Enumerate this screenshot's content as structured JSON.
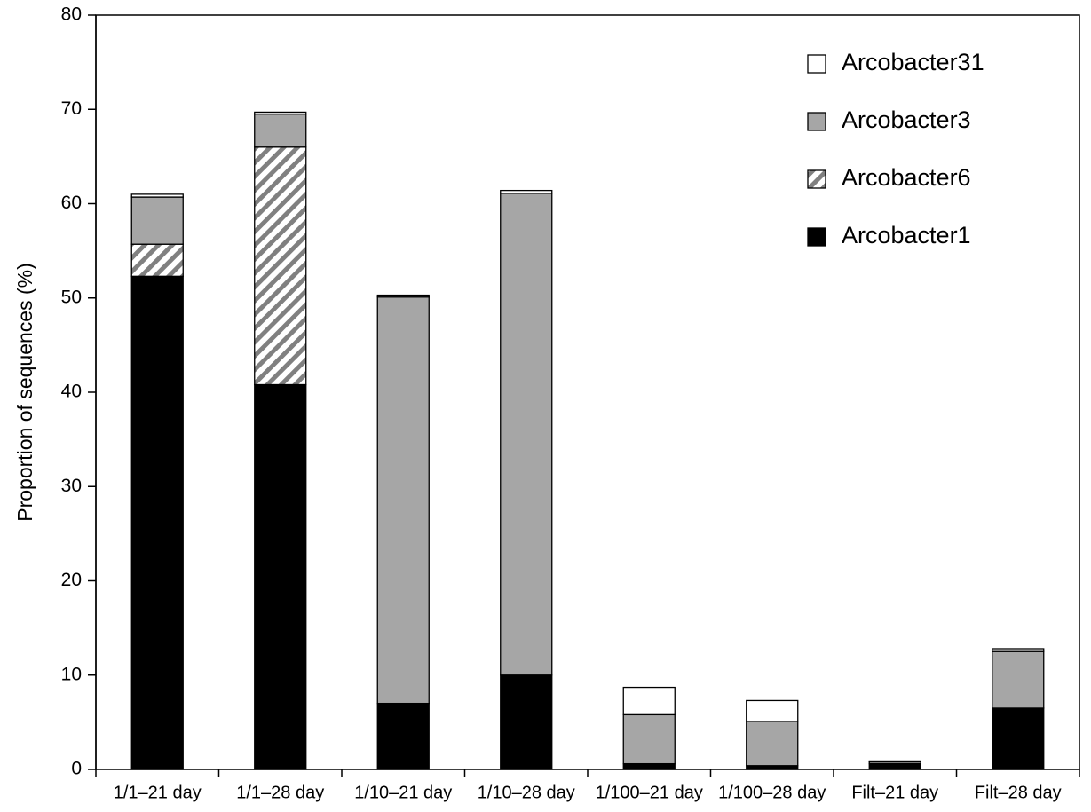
{
  "chart_data": {
    "type": "stacked-bar",
    "y_label": "Proportion of sequences (%)",
    "categories": [
      "1/1–21 day",
      "1/1–28 day",
      "1/10–21 day",
      "1/10–28 day",
      "1/100–21 day",
      "1/100–28 day",
      "Filt–21 day",
      "Filt–28 day"
    ],
    "series": [
      {
        "name": "Arcobacter1",
        "color": "#000000",
        "values": [
          52.3,
          40.8,
          7.0,
          10.0,
          0.6,
          0.4,
          0.6,
          6.5
        ]
      },
      {
        "name": "Arcobacter6",
        "color": "#808080",
        "pattern": "diagonal-hatch",
        "values": [
          3.4,
          25.2,
          0,
          0,
          0,
          0,
          0,
          0
        ]
      },
      {
        "name": "Arcobacter3",
        "color": "#a6a6a6",
        "values": [
          5.0,
          3.5,
          43.1,
          51.1,
          5.2,
          4.7,
          0.2,
          6.0
        ]
      },
      {
        "name": "Arcobacter31",
        "color": "#ffffff",
        "values": [
          0.3,
          0.2,
          0.2,
          0.3,
          2.9,
          2.2,
          0.1,
          0.3
        ]
      }
    ],
    "ylim": [
      0,
      80
    ],
    "yticks": [
      0,
      10,
      20,
      30,
      40,
      50,
      60,
      70,
      80
    ],
    "legend": "top-right"
  }
}
